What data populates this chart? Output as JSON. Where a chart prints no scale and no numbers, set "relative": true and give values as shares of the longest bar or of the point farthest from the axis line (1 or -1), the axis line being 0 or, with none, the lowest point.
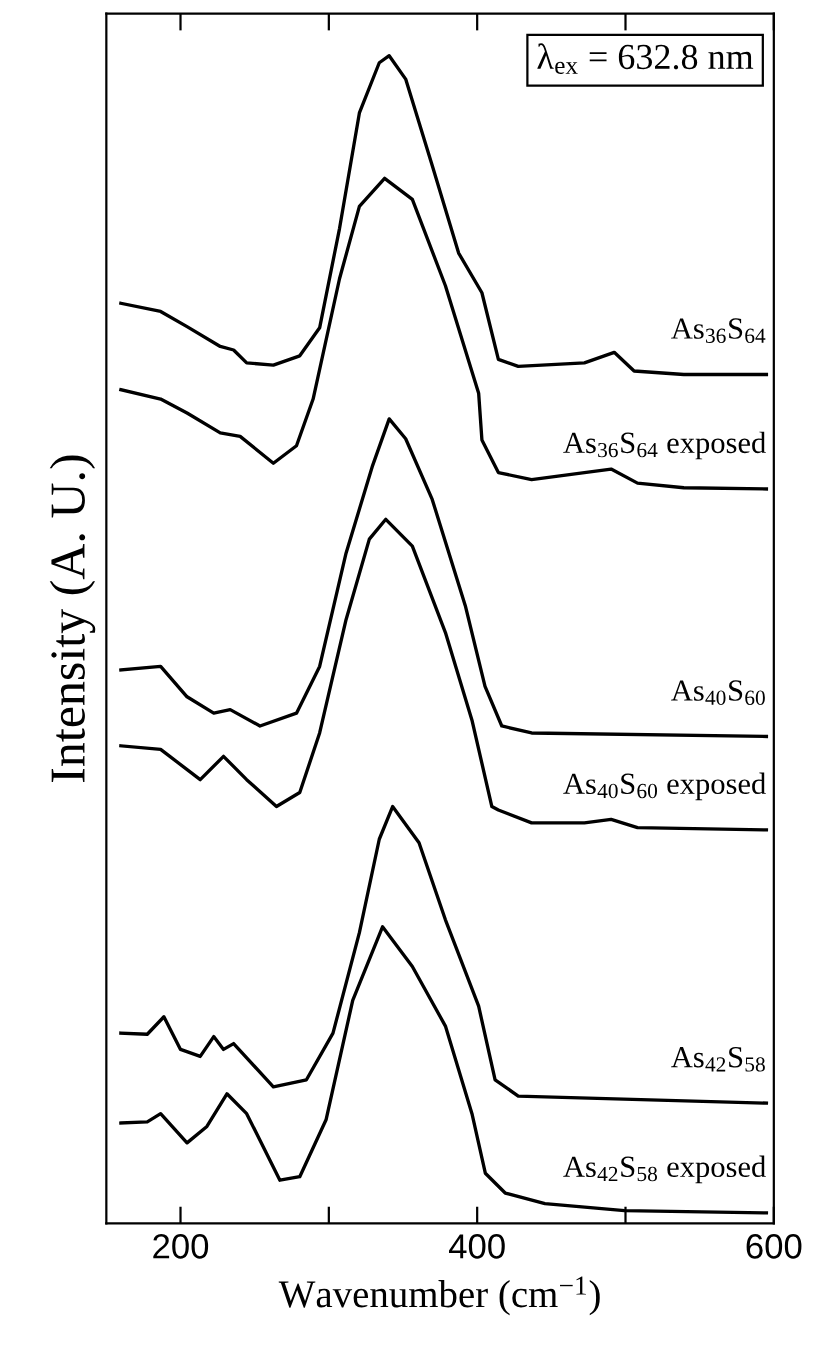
{
  "chart_data": {
    "type": "line",
    "relative": true,
    "xlabel": "Wavenumber (cm$^{−1}$)",
    "ylabel": "Intensity (A. U.)",
    "annotations": [
      "λ$_{ex}$ = 632.8 nm"
    ],
    "xlim": [
      150,
      600
    ],
    "xticks": [
      200,
      {
        "value": 300,
        "label": null
      },
      400,
      {
        "value": 500,
        "label": null
      },
      600
    ],
    "tick_labels": "x",
    "grid": false,
    "legend": false,
    "marker": "none",
    "line_style": "solid",
    "series": [
      {
        "name": "As$_{36}$S$_{64}$",
        "color": "#000000",
        "x": [
          159.8,
          186.6,
          204.4,
          226.8,
          235.8,
          244.6,
          262.6,
          280.4,
          293.8,
          307.2,
          320.6,
          334,
          340.7,
          351.8,
          369.7,
          387.5,
          403.2,
          414.3,
          427.7,
          472.3,
          492.4,
          505.8,
          539.3,
          595
        ],
        "values": [
          0.788,
          0.781,
          0.768,
          0.751,
          0.748,
          0.737,
          0.735,
          0.743,
          0.767,
          0.852,
          0.951,
          0.994,
          1.0,
          0.98,
          0.906,
          0.831,
          0.797,
          0.74,
          0.734,
          0.737,
          0.746,
          0.73,
          0.727,
          0.727
        ]
      },
      {
        "name": "As$_{36}$S$_{64}$ exposed",
        "color": "#000000",
        "x": [
          159.8,
          186.6,
          204.4,
          226.8,
          240.2,
          262.6,
          278.2,
          289.4,
          307.2,
          320.6,
          337.6,
          356.3,
          378.6,
          401,
          403.2,
          414.3,
          436.7,
          472.3,
          490.3,
          508.1,
          539.3,
          595
        ],
        "values": [
          0.714,
          0.706,
          0.694,
          0.677,
          0.674,
          0.651,
          0.666,
          0.706,
          0.809,
          0.871,
          0.895,
          0.877,
          0.803,
          0.711,
          0.671,
          0.643,
          0.637,
          0.643,
          0.646,
          0.634,
          0.63,
          0.629
        ]
      },
      {
        "name": "As$_{40}$S$_{60}$",
        "color": "#000000",
        "x": [
          159.8,
          186.6,
          204.4,
          222.4,
          233.5,
          253.6,
          278.2,
          293.8,
          311.6,
          329.5,
          340.7,
          351.8,
          369.7,
          392,
          405.3,
          416.6,
          436.7,
          595
        ],
        "values": [
          0.474,
          0.477,
          0.451,
          0.437,
          0.44,
          0.426,
          0.437,
          0.477,
          0.574,
          0.649,
          0.689,
          0.672,
          0.62,
          0.529,
          0.46,
          0.426,
          0.42,
          0.417
        ]
      },
      {
        "name": "As$_{40}$S$_{60}$ exposed",
        "color": "#000000",
        "x": [
          159.8,
          186.6,
          213.3,
          229,
          244.6,
          264.7,
          280.4,
          293.8,
          311.6,
          327.3,
          338.4,
          356.3,
          378.6,
          396.5,
          409.9,
          414.3,
          436.7,
          472.3,
          490.3,
          508.1,
          595
        ],
        "values": [
          0.409,
          0.406,
          0.38,
          0.4,
          0.38,
          0.357,
          0.369,
          0.42,
          0.517,
          0.586,
          0.603,
          0.58,
          0.506,
          0.431,
          0.357,
          0.354,
          0.343,
          0.343,
          0.346,
          0.339,
          0.337
        ]
      },
      {
        "name": "As$_{42}$S$_{58}$",
        "color": "#000000",
        "x": [
          159.8,
          177.6,
          188.8,
          200,
          213.3,
          222.4,
          229,
          235.8,
          262.6,
          284.9,
          302.8,
          320.6,
          334,
          343,
          360.8,
          378.6,
          401,
          412.1,
          427.7,
          595
        ],
        "values": [
          0.163,
          0.162,
          0.177,
          0.149,
          0.143,
          0.16,
          0.149,
          0.154,
          0.117,
          0.123,
          0.163,
          0.249,
          0.329,
          0.357,
          0.326,
          0.26,
          0.186,
          0.123,
          0.109,
          0.103
        ]
      },
      {
        "name": "As$_{42}$S$_{58}$ exposed",
        "color": "#000000",
        "x": [
          159.8,
          177.6,
          186.6,
          204.4,
          217.8,
          231.3,
          244.6,
          267,
          280.4,
          298.2,
          316.1,
          336.2,
          356.3,
          378.6,
          396.5,
          405.5,
          418.9,
          445.7,
          499.3,
          595
        ],
        "values": [
          0.086,
          0.087,
          0.094,
          0.069,
          0.083,
          0.111,
          0.094,
          0.037,
          0.04,
          0.089,
          0.191,
          0.254,
          0.22,
          0.169,
          0.094,
          0.043,
          0.026,
          0.017,
          0.011,
          0.009
        ]
      }
    ]
  }
}
